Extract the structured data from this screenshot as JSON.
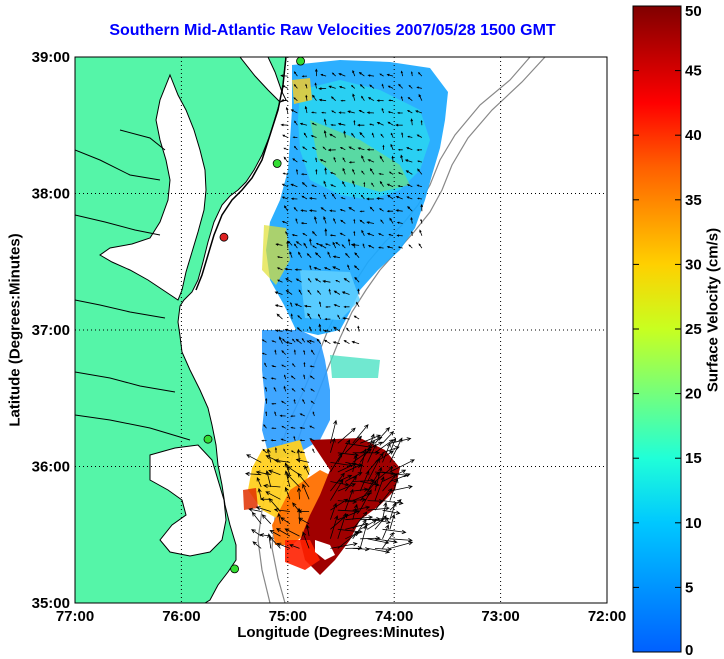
{
  "title": "Southern Mid-Atlantic Raw Velocities 2007/05/28 1500 GMT",
  "xlabel": "Longitude (Degrees:Minutes)",
  "ylabel": "Latitude (Degrees:Minutes)",
  "colorbar_label": "Surface Velocity (cm/s)",
  "x_ticks": [
    {
      "value": -77,
      "label": "77:00"
    },
    {
      "value": -76,
      "label": "76:00"
    },
    {
      "value": -75,
      "label": "75:00"
    },
    {
      "value": -74,
      "label": "74:00"
    },
    {
      "value": -73,
      "label": "73:00"
    },
    {
      "value": -72,
      "label": "72:00"
    }
  ],
  "y_ticks": [
    {
      "value": 39,
      "label": "39:00"
    },
    {
      "value": 38,
      "label": "38:00"
    },
    {
      "value": 37,
      "label": "37:00"
    },
    {
      "value": 36,
      "label": "36:00"
    },
    {
      "value": 35,
      "label": "35:00"
    }
  ],
  "colorbar_ticks": [
    {
      "value": 50,
      "label": "50"
    },
    {
      "value": 45,
      "label": "45"
    },
    {
      "value": 40,
      "label": "40"
    },
    {
      "value": 35,
      "label": "35"
    },
    {
      "value": 30,
      "label": "30"
    },
    {
      "value": 25,
      "label": "25"
    },
    {
      "value": 20,
      "label": "20"
    },
    {
      "value": 15,
      "label": "15"
    },
    {
      "value": 10,
      "label": "10"
    },
    {
      "value": 5,
      "label": "5"
    },
    {
      "value": 0,
      "label": "0"
    }
  ],
  "colors": {
    "land": "#55f5a8",
    "title": "#0000ff",
    "radar_site": "#33dd33",
    "radar_site_inactive": "#dd2222",
    "grid": "#000000"
  },
  "chart_data": {
    "type": "heatmap",
    "x_range": [
      -77,
      -72
    ],
    "y_range": [
      35,
      39
    ],
    "color_range": [
      0,
      50
    ],
    "grid": true,
    "radar_sites": [
      {
        "lon": -74.88,
        "lat": 38.97,
        "active": true
      },
      {
        "lon": -75.1,
        "lat": 38.22,
        "active": true
      },
      {
        "lon": -75.6,
        "lat": 37.68,
        "active": false
      },
      {
        "lon": -75.75,
        "lat": 36.2,
        "active": true
      },
      {
        "lon": -75.5,
        "lat": 35.25,
        "active": true
      }
    ],
    "velocity_regions": [
      {
        "lon_min": -75.0,
        "lon_max": -73.7,
        "lat_min": 37.6,
        "lat_max": 38.9,
        "speed": 12
      },
      {
        "lon_min": -75.05,
        "lon_max": -74.3,
        "lat_min": 36.9,
        "lat_max": 37.7,
        "speed": 13
      },
      {
        "lon_min": -75.2,
        "lon_max": -74.7,
        "lat_min": 36.1,
        "lat_max": 37.0,
        "speed": 9
      },
      {
        "lon_min": -74.6,
        "lon_max": -74.0,
        "lat_min": 35.4,
        "lat_max": 36.2,
        "speed": 47
      },
      {
        "lon_min": -75.25,
        "lon_max": -74.75,
        "lat_min": 35.4,
        "lat_max": 36.1,
        "speed": 30
      }
    ]
  }
}
